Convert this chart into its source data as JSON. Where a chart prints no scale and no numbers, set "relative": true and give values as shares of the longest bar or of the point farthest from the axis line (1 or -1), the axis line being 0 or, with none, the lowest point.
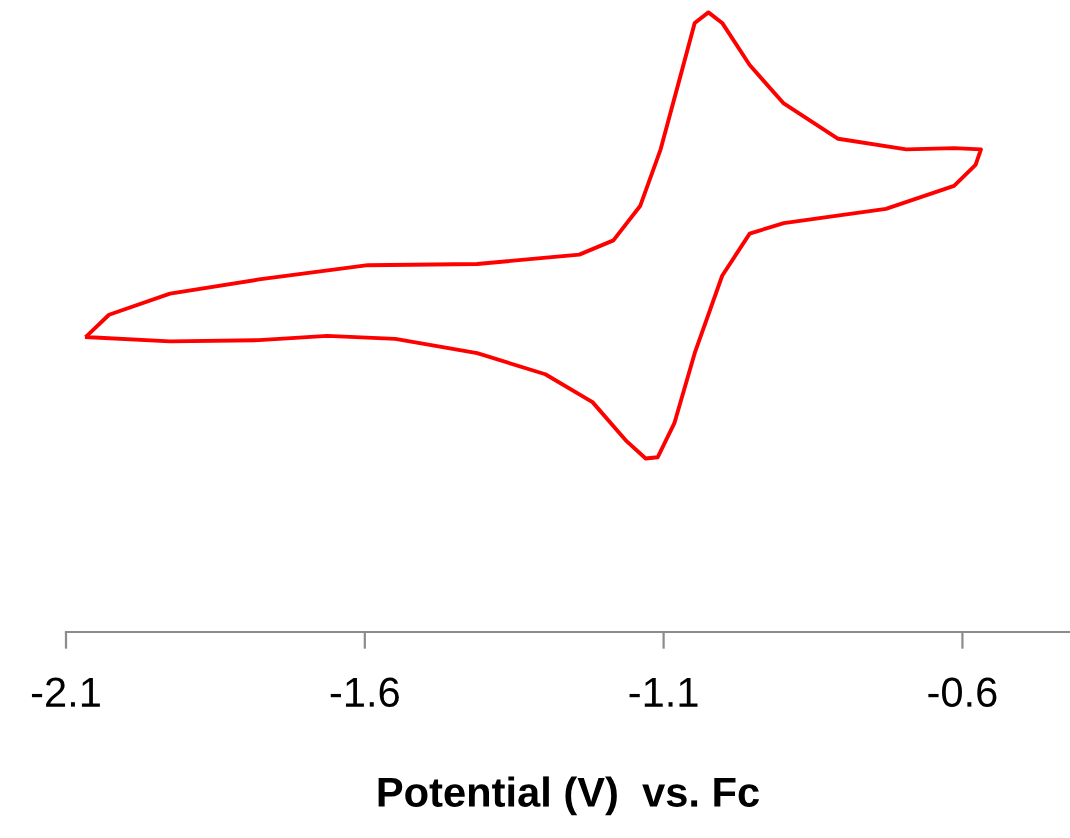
{
  "chart_data": {
    "type": "line",
    "relative": true,
    "xlabel": "Potential (V)  vs. Fc",
    "xlim": [
      -2.1,
      -0.42
    ],
    "xticks": [
      -2.1,
      -1.6,
      -1.1,
      -0.6
    ],
    "grid": false,
    "legend": false,
    "marker": "none",
    "line_style": "solid",
    "series": [
      {
        "color": "#ff0000",
        "x": [
          -2.065,
          -2.028,
          -1.926,
          -1.777,
          -1.595,
          -1.412,
          -1.241,
          -1.184,
          -1.139,
          -1.105,
          -1.07,
          -1.048,
          -1.025,
          -1.002,
          -0.956,
          -0.899,
          -0.808,
          -0.694,
          -0.614,
          -0.569,
          -0.578,
          -0.614,
          -0.728,
          -0.899,
          -0.956,
          -1.002,
          -1.048,
          -1.082,
          -1.11,
          -1.13,
          -1.162,
          -1.219,
          -1.298,
          -1.412,
          -1.549,
          -1.663,
          -1.777,
          -1.926,
          -2.065
        ],
        "values": [
          0.478,
          0.512,
          0.546,
          0.569,
          0.592,
          0.594,
          0.609,
          0.632,
          0.688,
          0.779,
          0.904,
          0.983,
          1.0,
          0.983,
          0.915,
          0.853,
          0.796,
          0.779,
          0.781,
          0.779,
          0.754,
          0.72,
          0.683,
          0.66,
          0.643,
          0.575,
          0.45,
          0.337,
          0.282,
          0.28,
          0.308,
          0.371,
          0.416,
          0.45,
          0.473,
          0.478,
          0.471,
          0.469,
          0.476
        ]
      }
    ]
  }
}
